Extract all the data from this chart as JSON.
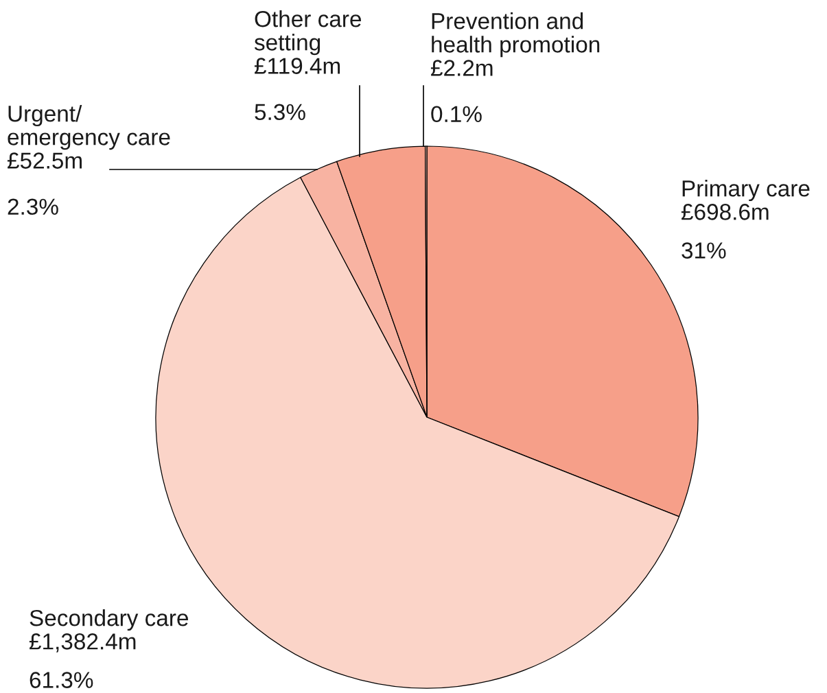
{
  "chart_data": {
    "type": "pie",
    "categories": [
      "Primary care",
      "Secondary care",
      "Urgent/\nemergency care",
      "Other care\nsetting",
      "Prevention and\nhealth promotion"
    ],
    "values": [
      698.6,
      1382.4,
      52.5,
      119.4,
      2.2
    ],
    "value_labels": [
      "£698.6m",
      "£1,382.4m",
      "£52.5m",
      "£119.4m",
      "£2.2m"
    ],
    "annotations": [
      "31%",
      "61.3%",
      "2.3%",
      "5.3%",
      "0.1%"
    ],
    "colors": [
      "#f69f89",
      "#fbd4c8",
      "#f8b3a2",
      "#f69f89",
      "#f8c0b0"
    ],
    "legend": false
  }
}
